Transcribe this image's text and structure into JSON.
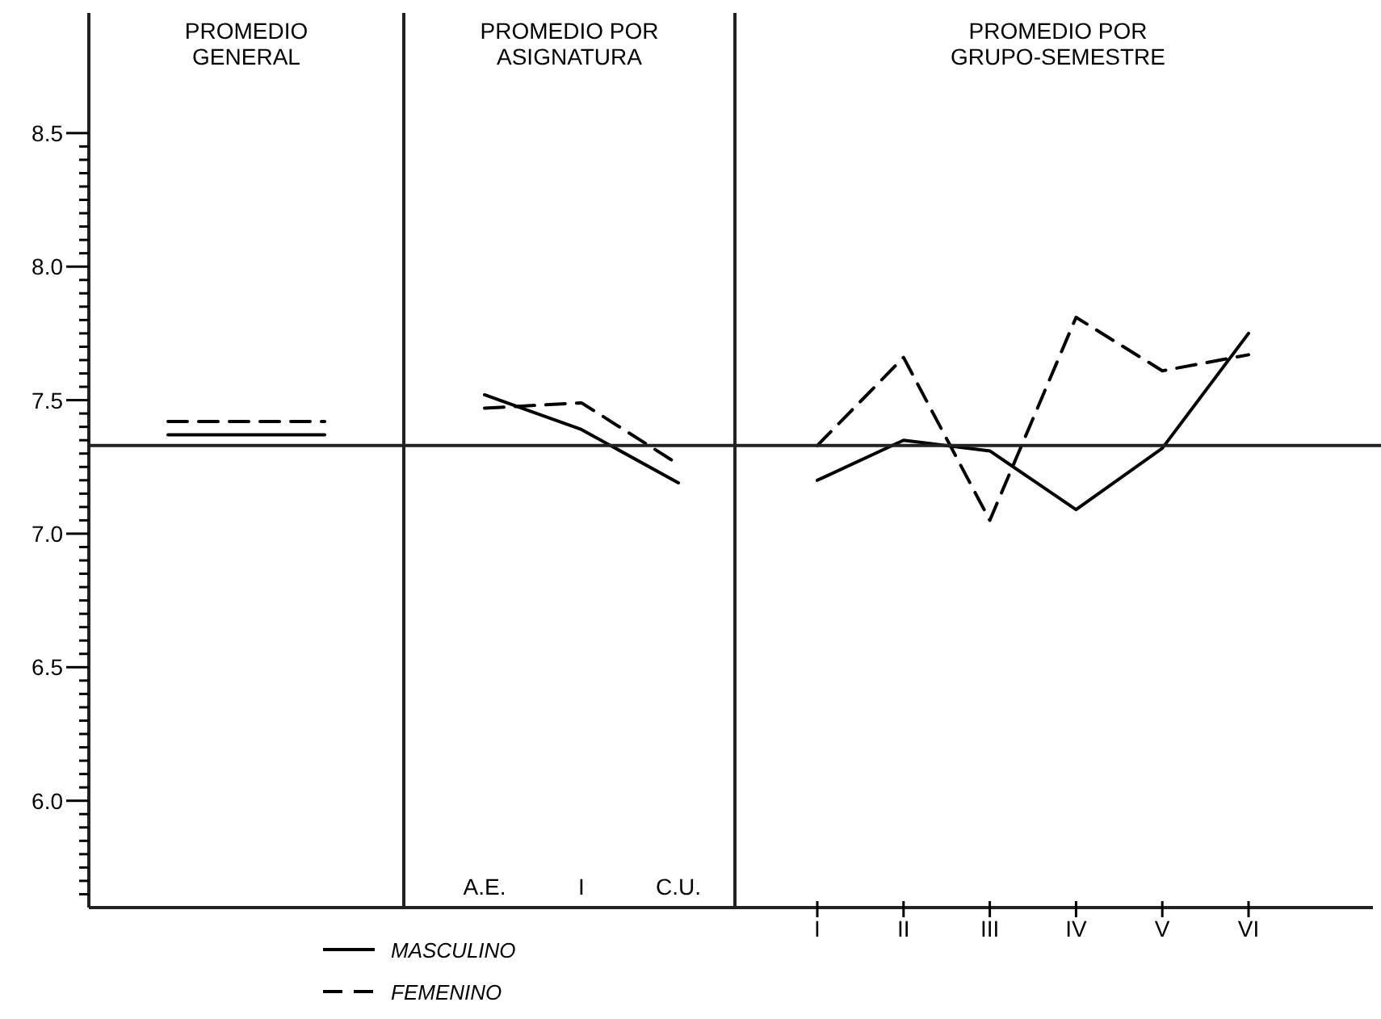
{
  "chart_data": [
    {
      "type": "line",
      "title": "PROMEDIO GENERAL",
      "categories": [
        null,
        null
      ],
      "ylim": [
        5.6,
        8.95
      ],
      "yticks": [
        {
          "value": 6.0,
          "label": "6.0"
        },
        6.5,
        {
          "value": 7.0,
          "label": "7.0"
        },
        7.5,
        {
          "value": 8.0,
          "label": "8.0"
        },
        8.5,
        {
          "value": 5.65,
          "label": null
        },
        {
          "value": 5.7,
          "label": null
        },
        {
          "value": 5.75,
          "label": null
        },
        {
          "value": 5.8,
          "label": null
        },
        {
          "value": 5.85,
          "label": null
        },
        {
          "value": 5.9,
          "label": null
        },
        {
          "value": 5.95,
          "label": null
        },
        {
          "value": 6.05,
          "label": null
        },
        {
          "value": 6.1,
          "label": null
        },
        {
          "value": 6.15,
          "label": null
        },
        {
          "value": 6.2,
          "label": null
        },
        {
          "value": 6.25,
          "label": null
        },
        {
          "value": 6.3,
          "label": null
        },
        {
          "value": 6.35,
          "label": null
        },
        {
          "value": 6.4,
          "label": null
        },
        {
          "value": 6.45,
          "label": null
        },
        {
          "value": 6.55,
          "label": null
        },
        {
          "value": 6.6,
          "label": null
        },
        {
          "value": 6.65,
          "label": null
        },
        {
          "value": 6.7,
          "label": null
        },
        {
          "value": 6.75,
          "label": null
        },
        {
          "value": 6.8,
          "label": null
        },
        {
          "value": 6.85,
          "label": null
        },
        {
          "value": 6.9,
          "label": null
        },
        {
          "value": 6.95,
          "label": null
        },
        {
          "value": 7.05,
          "label": null
        },
        {
          "value": 7.1,
          "label": null
        },
        {
          "value": 7.15,
          "label": null
        },
        {
          "value": 7.2,
          "label": null
        },
        {
          "value": 7.25,
          "label": null
        },
        {
          "value": 7.3,
          "label": null
        },
        {
          "value": 7.35,
          "label": null
        },
        {
          "value": 7.4,
          "label": null
        },
        {
          "value": 7.45,
          "label": null
        },
        {
          "value": 7.55,
          "label": null
        },
        {
          "value": 7.6,
          "label": null
        },
        {
          "value": 7.65,
          "label": null
        },
        {
          "value": 7.7,
          "label": null
        },
        {
          "value": 7.75,
          "label": null
        },
        {
          "value": 7.8,
          "label": null
        },
        {
          "value": 7.85,
          "label": null
        },
        {
          "value": 7.9,
          "label": null
        },
        {
          "value": 7.95,
          "label": null
        },
        {
          "value": 8.05,
          "label": null
        },
        {
          "value": 8.1,
          "label": null
        },
        {
          "value": 8.15,
          "label": null
        },
        {
          "value": 8.2,
          "label": null
        },
        {
          "value": 8.25,
          "label": null
        },
        {
          "value": 8.3,
          "label": null
        },
        {
          "value": 8.35,
          "label": null
        },
        {
          "value": 8.4,
          "label": null
        },
        {
          "value": 8.45,
          "label": null
        }
      ],
      "tick_labels": "y",
      "legend": "bottom",
      "marker": "none",
      "series": [
        {
          "name": "MASCULINO",
          "color": "#000000",
          "line_style": "solid",
          "values": [
            7.37,
            7.37
          ]
        },
        {
          "name": "FEMENINO",
          "color": "#000000",
          "line_style": "dashed",
          "values": [
            7.42,
            7.42
          ]
        }
      ],
      "ref_lines": [
        {
          "axis": "y",
          "value": 7.33
        }
      ]
    },
    {
      "type": "line",
      "title": "PROMEDIO POR ASIGNATURA",
      "categories": [
        "A.E.",
        "I",
        "C.U."
      ],
      "ylim": [
        5.6,
        8.95
      ],
      "tick_labels": "x",
      "marker": "none",
      "series": [
        {
          "color": "#000000",
          "line_style": "solid",
          "values": [
            7.52,
            7.39,
            7.19
          ]
        },
        {
          "color": "#000000",
          "line_style": "dashed",
          "values": [
            7.47,
            7.49,
            7.26
          ]
        }
      ],
      "ref_lines": [
        {
          "axis": "y",
          "value": 7.33
        }
      ]
    },
    {
      "type": "line",
      "title": "PROMEDIO POR GRUPO-SEMESTRE",
      "categories": [
        "I",
        "II",
        "III",
        "IV",
        "V",
        "VI"
      ],
      "ylim": [
        5.6,
        8.95
      ],
      "tick_labels": "x",
      "marker": "none",
      "series": [
        {
          "color": "#000000",
          "line_style": "solid",
          "values": [
            7.2,
            7.35,
            7.31,
            7.09,
            7.32,
            7.75
          ]
        },
        {
          "color": "#000000",
          "line_style": "dashed",
          "values": [
            7.33,
            7.66,
            7.05,
            7.81,
            7.61,
            7.67
          ]
        }
      ],
      "ref_lines": [
        {
          "axis": "y",
          "value": 7.33
        }
      ]
    }
  ]
}
